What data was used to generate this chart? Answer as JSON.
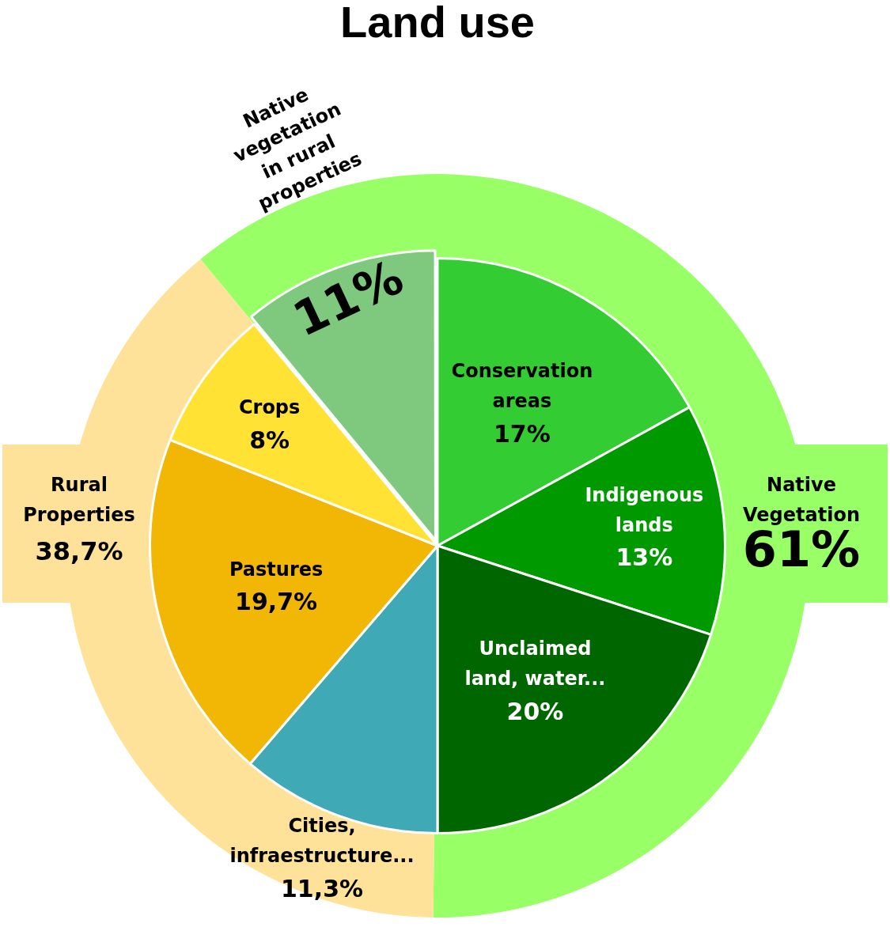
{
  "chart_data": [
    {
      "type": "pie",
      "title": "Land use",
      "categories": [
        "Conservation areas",
        "Indigenous lands",
        "Unclaimed land, water...",
        "Cities, infraestructure...",
        "Pastures",
        "Crops",
        "Native vegetation in rural properties"
      ],
      "values": [
        17,
        13,
        20,
        11.3,
        19.7,
        8,
        11
      ],
      "colors": [
        "#33cc33",
        "#009900",
        "#006600",
        "#3fa9b5",
        "#f2b705",
        "#ffe233",
        "#7fc97f"
      ],
      "value_labels": [
        "17%",
        "13%",
        "20%",
        "11,3%",
        "19,7%",
        "8%",
        "11%"
      ]
    },
    {
      "type": "donut",
      "categories": [
        "Native Vegetation",
        "Rural Properties"
      ],
      "values": [
        61,
        38.7
      ],
      "colors": [
        "#99ff66",
        "#ffe299"
      ],
      "value_labels": [
        "61%",
        "38,7%"
      ]
    }
  ]
}
